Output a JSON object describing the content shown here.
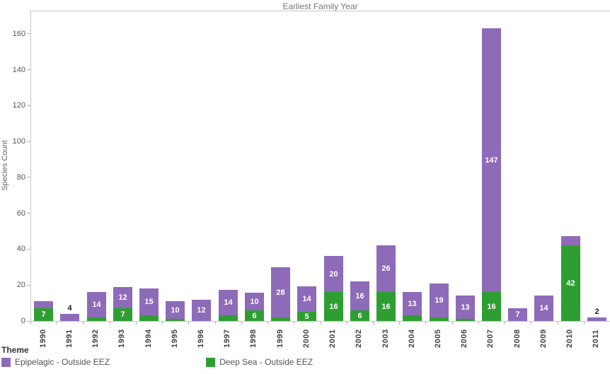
{
  "title": "Earliest Family Year",
  "y_axis_title": "Species Count",
  "legend": {
    "title": "Theme",
    "items": [
      {
        "label": "Epipelagic - Outside EEZ",
        "color": "#8e6bb9"
      },
      {
        "label": "Deep Sea - Outside EEZ",
        "color": "#2f9e32"
      }
    ]
  },
  "chart_data": {
    "type": "bar",
    "stacked": true,
    "title": "Earliest Family Year",
    "xlabel": "",
    "ylabel": "Species Count",
    "ylim": [
      0,
      173
    ],
    "yticks": [
      0,
      20,
      40,
      60,
      80,
      100,
      120,
      140,
      160
    ],
    "grid": false,
    "legend_position": "bottom-left",
    "categories": [
      "1990",
      "1991",
      "1992",
      "1993",
      "1994",
      "1995",
      "1996",
      "1997",
      "1998",
      "1999",
      "2000",
      "2001",
      "2002",
      "2003",
      "2004",
      "2005",
      "2006",
      "2007",
      "2008",
      "2009",
      "2010",
      "2011"
    ],
    "series": [
      {
        "name": "Deep Sea - Outside EEZ",
        "color": "#2f9e32",
        "values": [
          7,
          0,
          2,
          7,
          3,
          1,
          0,
          3,
          6,
          2,
          5,
          16,
          6,
          16,
          3,
          2,
          1,
          16,
          0,
          0,
          42,
          0
        ],
        "labels": [
          "7",
          null,
          null,
          "7",
          null,
          null,
          null,
          null,
          "6",
          null,
          "5",
          "16",
          "6",
          "16",
          null,
          null,
          null,
          "16",
          null,
          null,
          "42",
          null
        ]
      },
      {
        "name": "Epipelagic - Outside EEZ",
        "color": "#8e6bb9",
        "values": [
          4,
          4,
          14,
          12,
          15,
          10,
          12,
          14,
          10,
          28,
          14,
          20,
          16,
          26,
          13,
          19,
          13,
          147,
          7,
          14,
          5,
          2
        ],
        "labels": [
          null,
          "4",
          "14",
          "12",
          "15",
          "10",
          "12",
          "14",
          "10",
          "28",
          "14",
          "20",
          "16",
          "26",
          "13",
          "19",
          "13",
          "147",
          "7",
          "14",
          null,
          "2"
        ]
      }
    ]
  }
}
